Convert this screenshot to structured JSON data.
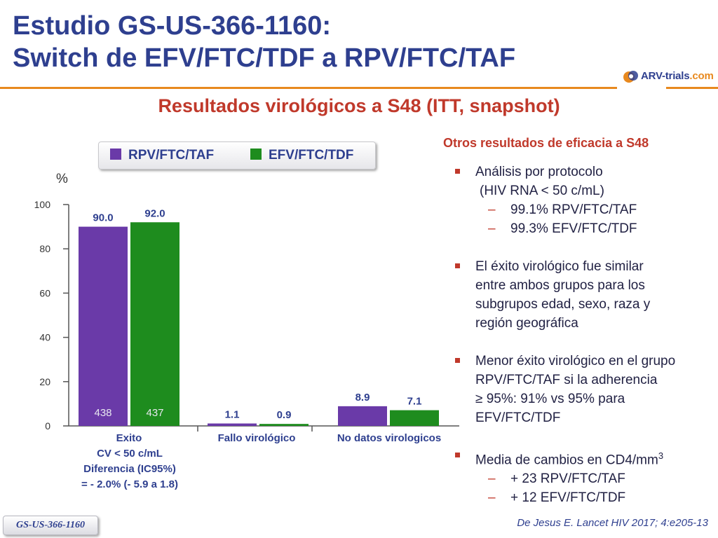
{
  "title": {
    "line1": "Estudio GS-US-366-1160:",
    "line2": "Switch de EFV/FTC/TDF a RPV/FTC/TAF"
  },
  "logo": {
    "part1": "ARV-trials",
    "part2": ".com"
  },
  "subtitle": "Resultados virológicos a S48  (ITT, snapshot)",
  "colors": {
    "title": "#2e3f8f",
    "accent": "#c0392b",
    "rule": "#e8891e",
    "rpv": "#6a3aa8",
    "efv": "#1e8c1e"
  },
  "chart_data": {
    "type": "bar",
    "ylabel": "%",
    "ylim": [
      0,
      100
    ],
    "yticks": [
      0,
      20,
      40,
      60,
      80,
      100
    ],
    "categories": [
      "Exito",
      "Fallo virológico",
      "No datos virologicos"
    ],
    "series": [
      {
        "name": "RPV/FTC/TAF",
        "color": "#6a3aa8",
        "values": [
          90.0,
          1.1,
          8.9
        ],
        "labels": [
          "90.0",
          "1.1",
          "8.9"
        ]
      },
      {
        "name": "EFV/FTC/TDF",
        "color": "#1e8c1e",
        "values": [
          92.0,
          0.9,
          7.1
        ],
        "labels": [
          "92.0",
          "0.9",
          "7.1"
        ]
      }
    ],
    "n_labels": [
      "438",
      "437"
    ],
    "category_notes": [
      "CV < 50 c/mL",
      "Diferencia (IC95%)",
      "= - 2.0% (- 5.9 a 1.8)"
    ]
  },
  "right_panel": {
    "title": "Otros resultados de eficacia a S48",
    "b1": {
      "l1": "Análisis por protocolo",
      "l2": "(HIV RNA < 50 c/mL)",
      "s1": "99.1% RPV/FTC/TAF",
      "s2": "99.3% EFV/FTC/TDF"
    },
    "b2": {
      "l1": "El éxito virológico fue similar",
      "l2": "entre ambos grupos para los",
      "l3": "subgrupos edad, sexo, raza y",
      "l4": "región geográfica"
    },
    "b3": {
      "l1": "Menor éxito virológico en el grupo",
      "l2": "RPV/FTC/TAF si la adherencia",
      "l3": "≥ 95%: 91% vs 95% para",
      "l4": "EFV/FTC/TDF"
    },
    "b4": {
      "l1": "Media de cambios en CD4/mm",
      "sup": "3",
      "s1": "+ 23 RPV/FTC/TAF",
      "s2": "+ 12 EFV/FTC/TDF"
    },
    "dash": "–"
  },
  "footer": {
    "study_tag": "GS-US-366-1160",
    "citation": "De Jesus E. Lancet HIV 2017; 4:e205-13"
  }
}
